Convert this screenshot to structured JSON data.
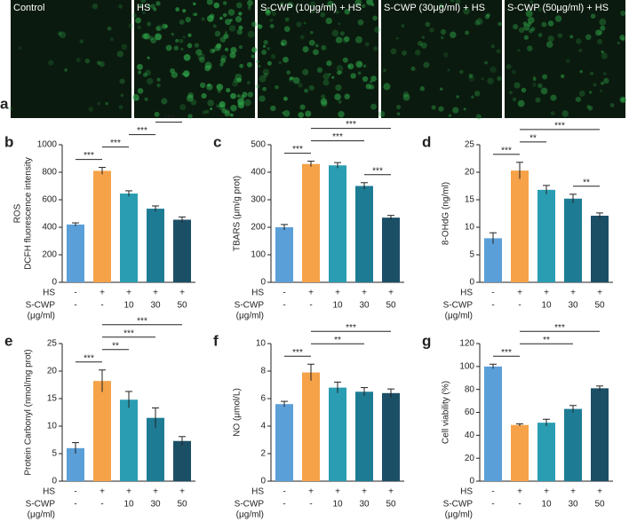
{
  "images": {
    "panel": "a",
    "labels": [
      "Control",
      "HS",
      "S-CWP (10μg/ml) + HS",
      "S-CWP (30μg/ml) + HS",
      "S-CWP (50μg/ml) + HS"
    ]
  },
  "conditions": {
    "hs_label": "HS",
    "hs": [
      "-",
      "+",
      "+",
      "+",
      "+"
    ],
    "scwp_label": [
      "S-CWP",
      "(μg/ml)"
    ],
    "scwp": [
      "-",
      "-",
      "10",
      "30",
      "50"
    ]
  },
  "chart_data": [
    {
      "type": "bar",
      "panel": "b",
      "ylabel": [
        "ROS",
        "DCFH fluorescence intensity"
      ],
      "values": [
        420,
        810,
        645,
        535,
        455
      ],
      "errors": [
        12,
        25,
        20,
        20,
        20
      ],
      "colors": [
        "#5b9fd8",
        "#f5a249",
        "#2a9db3",
        "#1e7b94",
        "#1b4f66"
      ],
      "ylim": [
        0,
        1000
      ],
      "yticks": [
        0,
        200,
        400,
        600,
        800,
        1000
      ],
      "significance": [
        {
          "from": 0,
          "to": 1,
          "label": "***"
        },
        {
          "from": 1,
          "to": 2,
          "label": "***"
        },
        {
          "from": 2,
          "to": 3,
          "label": "***"
        },
        {
          "from": 3,
          "to": 4,
          "label": "***"
        }
      ]
    },
    {
      "type": "bar",
      "panel": "c",
      "ylabel": [
        "TBARS (μm/g prot)"
      ],
      "values": [
        200,
        430,
        425,
        350,
        235
      ],
      "errors": [
        10,
        10,
        10,
        12,
        8
      ],
      "colors": [
        "#5b9fd8",
        "#f5a249",
        "#2a9db3",
        "#1e7b94",
        "#1b4f66"
      ],
      "ylim": [
        0,
        500
      ],
      "yticks": [
        0,
        100,
        200,
        300,
        400,
        500
      ],
      "significance": [
        {
          "from": 0,
          "to": 1,
          "label": "***"
        },
        {
          "from": 3,
          "to": 4,
          "label": "***"
        },
        {
          "from": 1,
          "to": 3,
          "label": "***"
        },
        {
          "from": 1,
          "to": 4,
          "label": "***"
        }
      ]
    },
    {
      "type": "bar",
      "panel": "d",
      "ylabel": [
        "8-OHdG (ng/ml)"
      ],
      "values": [
        8,
        20.3,
        16.8,
        15.2,
        12.1
      ],
      "errors": [
        1,
        1.5,
        0.8,
        0.8,
        0.5
      ],
      "colors": [
        "#5b9fd8",
        "#f5a249",
        "#2a9db3",
        "#1e7b94",
        "#1b4f66"
      ],
      "ylim": [
        0,
        25
      ],
      "yticks": [
        0,
        5,
        10,
        15,
        20,
        25
      ],
      "significance": [
        {
          "from": 0,
          "to": 1,
          "label": "***"
        },
        {
          "from": 1,
          "to": 2,
          "label": "**"
        },
        {
          "from": 3,
          "to": 4,
          "label": "**"
        },
        {
          "from": 1,
          "to": 4,
          "label": "***"
        }
      ]
    },
    {
      "type": "bar",
      "panel": "e",
      "ylabel": [
        "Protein Carbonyl (nmol/mg prot)"
      ],
      "values": [
        6,
        18.2,
        14.8,
        11.5,
        7.3
      ],
      "errors": [
        1,
        2,
        1.5,
        1.8,
        0.8
      ],
      "colors": [
        "#5b9fd8",
        "#f5a249",
        "#2a9db3",
        "#1e7b94",
        "#1b4f66"
      ],
      "ylim": [
        0,
        25
      ],
      "yticks": [
        0,
        5,
        10,
        15,
        20,
        25
      ],
      "significance": [
        {
          "from": 0,
          "to": 1,
          "label": "***"
        },
        {
          "from": 1,
          "to": 2,
          "label": "**"
        },
        {
          "from": 1,
          "to": 3,
          "label": "***"
        },
        {
          "from": 1,
          "to": 4,
          "label": "***"
        }
      ]
    },
    {
      "type": "bar",
      "panel": "f",
      "ylabel": [
        "NO (μmol/L)"
      ],
      "values": [
        5.6,
        7.9,
        6.8,
        6.5,
        6.4
      ],
      "errors": [
        0.2,
        0.6,
        0.4,
        0.3,
        0.3
      ],
      "colors": [
        "#5b9fd8",
        "#f5a249",
        "#2a9db3",
        "#1e7b94",
        "#1b4f66"
      ],
      "ylim": [
        0,
        10
      ],
      "yticks": [
        0,
        2,
        4,
        6,
        8,
        10
      ],
      "significance": [
        {
          "from": 0,
          "to": 1,
          "label": "***"
        },
        {
          "from": 1,
          "to": 3,
          "label": "**"
        },
        {
          "from": 1,
          "to": 4,
          "label": "***"
        }
      ]
    },
    {
      "type": "bar",
      "panel": "g",
      "ylabel": [
        "Cell viability (%)"
      ],
      "values": [
        100,
        49,
        51,
        63,
        81
      ],
      "errors": [
        2,
        1,
        3,
        3,
        2
      ],
      "colors": [
        "#5b9fd8",
        "#f5a249",
        "#2a9db3",
        "#1e7b94",
        "#1b4f66"
      ],
      "ylim": [
        0,
        120
      ],
      "yticks": [
        0,
        20,
        40,
        60,
        80,
        100,
        120
      ],
      "significance": [
        {
          "from": 0,
          "to": 1,
          "label": "***"
        },
        {
          "from": 1,
          "to": 3,
          "label": "**"
        },
        {
          "from": 1,
          "to": 4,
          "label": "***"
        }
      ]
    }
  ]
}
